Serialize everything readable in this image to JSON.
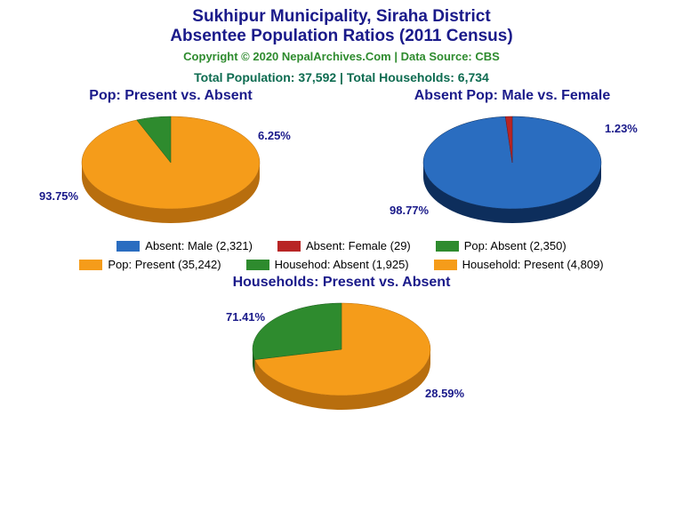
{
  "colors": {
    "title": "#1a1a8a",
    "copyright": "#2e8b2e",
    "stats": "#0d6b50",
    "chartTitle": "#1a1a8a",
    "pieLabel": "#1a1a8a",
    "legendText": "#000000",
    "orange": "#f59c1a",
    "orangeEdge": "#b86e0e",
    "green": "#2e8b2e",
    "greenEdge": "#1e5c1e",
    "blue": "#2a6dc0",
    "blueEdge": "#0d2e5c",
    "red": "#b82525",
    "redEdge": "#7a1616",
    "black": "#000000"
  },
  "titleMain": "Sukhipur Municipality, Siraha District",
  "titleSub": "Absentee Population Ratios (2011 Census)",
  "copyright": "Copyright © 2020 NepalArchives.Com | Data Source: CBS",
  "stats": "Total Population: 37,592 | Total Households: 6,734",
  "chart1": {
    "title": "Pop: Present vs. Absent",
    "type": "pie3d",
    "slices": [
      {
        "pct": 93.75,
        "label": "93.75%",
        "color": "orange",
        "labelX": -28,
        "labelY": 92
      },
      {
        "pct": 6.25,
        "label": "6.25%",
        "color": "green",
        "labelX": 218,
        "labelY": 24
      }
    ]
  },
  "chart2": {
    "title": "Absent Pop: Male vs. Female",
    "type": "pie3d",
    "slices": [
      {
        "pct": 98.77,
        "label": "98.77%",
        "color": "blue",
        "labelX": -18,
        "labelY": 108
      },
      {
        "pct": 1.23,
        "label": "1.23%",
        "color": "red",
        "labelX": 224,
        "labelY": 16
      }
    ]
  },
  "chart3": {
    "title": "Households: Present vs. Absent",
    "type": "pie3d",
    "slices": [
      {
        "pct": 71.41,
        "label": "71.41%",
        "color": "orange",
        "labelX": -10,
        "labelY": 18
      },
      {
        "pct": 28.59,
        "label": "28.59%",
        "color": "green",
        "labelX": 214,
        "labelY": 104
      }
    ]
  },
  "legend": [
    {
      "label": "Absent: Male (2,321)",
      "color": "blue"
    },
    {
      "label": "Absent: Female (29)",
      "color": "red"
    },
    {
      "label": "Pop: Absent (2,350)",
      "color": "green"
    },
    {
      "label": "Pop: Present (35,242)",
      "color": "orange"
    },
    {
      "label": "Househod: Absent (1,925)",
      "color": "green"
    },
    {
      "label": "Household: Present (4,809)",
      "color": "orange"
    }
  ]
}
